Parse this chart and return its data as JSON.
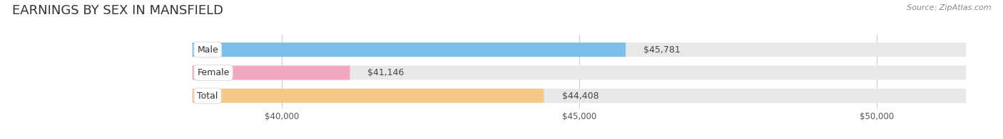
{
  "title": "EARNINGS BY SEX IN MANSFIELD",
  "source": "Source: ZipAtlas.com",
  "categories": [
    "Male",
    "Female",
    "Total"
  ],
  "values": [
    45781,
    41146,
    44408
  ],
  "bar_colors": [
    "#7bbfe8",
    "#f4a8c0",
    "#f5c98a"
  ],
  "value_labels": [
    "$45,781",
    "$41,146",
    "$44,408"
  ],
  "x_min": 38500,
  "x_max": 51500,
  "x_ticks": [
    40000,
    45000,
    50000
  ],
  "x_tick_labels": [
    "$40,000",
    "$45,000",
    "$50,000"
  ],
  "bg_color": "#ffffff",
  "bar_bg_color": "#e8e8e8",
  "title_fontsize": 13,
  "source_fontsize": 8,
  "tick_fontsize": 8.5,
  "bar_height": 0.62,
  "label_fontsize": 9,
  "value_label_fontsize": 9
}
